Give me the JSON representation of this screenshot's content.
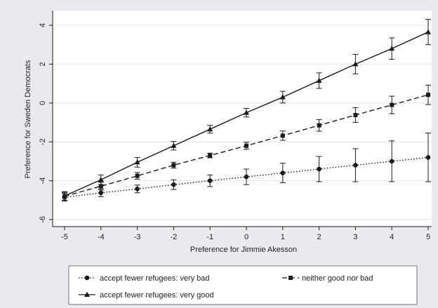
{
  "chart_data": {
    "type": "line",
    "title": "",
    "xlabel": "Preference for Jimmie Akesson",
    "ylabel": "Preference for Sweden Democrats",
    "xlim": [
      -5,
      5
    ],
    "ylim": [
      -6,
      4
    ],
    "x": [
      -5,
      -4,
      -3,
      -2,
      -1,
      0,
      1,
      2,
      3,
      4,
      5
    ],
    "x_ticks": [
      -5,
      -4,
      -3,
      -2,
      -1,
      0,
      1,
      2,
      3,
      4,
      5
    ],
    "y_ticks": [
      -6,
      -4,
      -2,
      0,
      2,
      4
    ],
    "grid": "horizontal",
    "legend_position": "bottom",
    "series": [
      {
        "name": "accept fewer refugees: very bad",
        "line_style": "dotted",
        "marker": "circle",
        "values": [
          -4.85,
          -4.62,
          -4.42,
          -4.2,
          -4.0,
          -3.8,
          -3.6,
          -3.4,
          -3.2,
          -3.0,
          -2.8
        ],
        "ci_low": [
          -5.05,
          -4.82,
          -4.62,
          -4.45,
          -4.3,
          -4.2,
          -4.1,
          -4.05,
          -4.05,
          -4.05,
          -4.05
        ],
        "ci_high": [
          -4.65,
          -4.42,
          -4.22,
          -3.95,
          -3.7,
          -3.4,
          -3.1,
          -2.75,
          -2.35,
          -1.95,
          -1.55
        ]
      },
      {
        "name": "neither good nor bad",
        "line_style": "dashed",
        "marker": "square",
        "values": [
          -4.8,
          -4.28,
          -3.75,
          -3.2,
          -2.7,
          -2.2,
          -1.68,
          -1.15,
          -0.62,
          -0.1,
          0.42
        ],
        "ci_low": [
          -5.0,
          -4.48,
          -3.92,
          -3.35,
          -2.82,
          -2.38,
          -1.92,
          -1.45,
          -1.0,
          -0.55,
          -0.08
        ],
        "ci_high": [
          -4.6,
          -4.08,
          -3.58,
          -3.05,
          -2.58,
          -2.02,
          -1.44,
          -0.85,
          -0.24,
          0.35,
          0.92
        ]
      },
      {
        "name": "accept fewer refugees: very good",
        "line_style": "solid",
        "marker": "triangle",
        "values": [
          -4.78,
          -3.95,
          -3.05,
          -2.2,
          -1.35,
          -0.5,
          0.3,
          1.15,
          2.0,
          2.8,
          3.65
        ],
        "ci_low": [
          -5.0,
          -4.2,
          -3.3,
          -2.42,
          -1.55,
          -0.72,
          0.0,
          0.75,
          1.5,
          2.25,
          3.0
        ],
        "ci_high": [
          -4.56,
          -3.7,
          -2.8,
          -1.98,
          -1.15,
          -0.28,
          0.6,
          1.55,
          2.5,
          3.35,
          4.3
        ]
      }
    ]
  },
  "legend": {
    "items": [
      "accept fewer refugees: very bad",
      "neither good nor bad",
      "accept fewer refugees: very good"
    ]
  },
  "colors": {
    "background": "#e9ebee",
    "plot_bg": "#ffffff",
    "ink": "#1a1a1a",
    "grid": "#e4e4e4"
  }
}
